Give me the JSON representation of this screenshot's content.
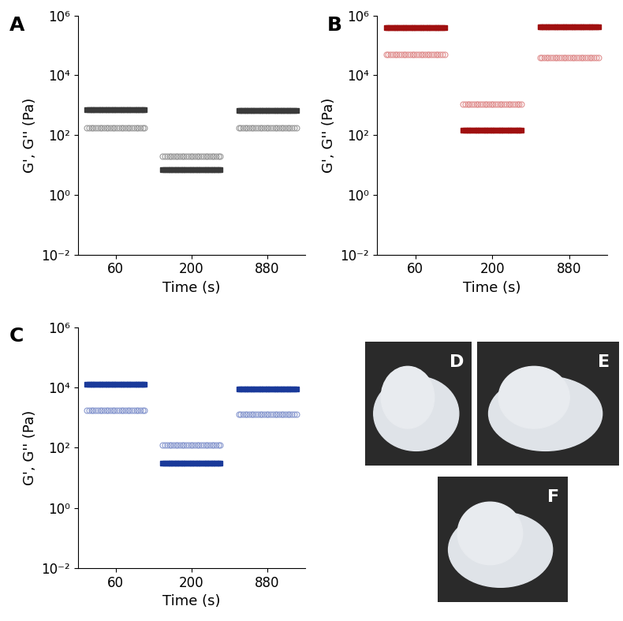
{
  "chart_data": [
    {
      "type": "scatter",
      "panel": "A",
      "x_label": "Time (s)",
      "y_label": "G', G'' (Pa)",
      "categories": [
        "60",
        "200",
        "880"
      ],
      "log": "y",
      "ylim": [
        0.01,
        1000000
      ],
      "yticks": [
        {
          "value": 0.01,
          "label": "10⁻²"
        },
        {
          "value": 1,
          "label": "10⁰"
        },
        {
          "value": 100,
          "label": "10²"
        },
        {
          "value": 10000,
          "label": "10⁴"
        },
        {
          "value": 1000000,
          "label": "10⁶"
        }
      ],
      "series": [
        {
          "name": "G'",
          "color": "#3a3a3a",
          "marker": "square",
          "values": [
            700,
            7,
            650
          ]
        },
        {
          "name": "G''",
          "color": "#9a9a9a",
          "marker": "open_circle",
          "values": [
            170,
            20,
            170
          ]
        }
      ]
    },
    {
      "type": "scatter",
      "panel": "B",
      "x_label": "Time (s)",
      "y_label": "G', G'' (Pa)",
      "categories": [
        "60",
        "200",
        "880"
      ],
      "log": "y",
      "ylim": [
        0.01,
        1000000
      ],
      "yticks": [
        {
          "value": 0.01,
          "label": "10⁻²"
        },
        {
          "value": 1,
          "label": "10⁰"
        },
        {
          "value": 100,
          "label": "10²"
        },
        {
          "value": 10000,
          "label": "10⁴"
        },
        {
          "value": 1000000,
          "label": "10⁶"
        }
      ],
      "series": [
        {
          "name": "G'",
          "color": "#a01010",
          "marker": "square",
          "values": [
            400000,
            150,
            420000
          ]
        },
        {
          "name": "G''",
          "color": "#e09090",
          "marker": "open_circle",
          "values": [
            50000,
            1100,
            40000
          ]
        }
      ]
    },
    {
      "type": "scatter",
      "panel": "C",
      "x_label": "Time (s)",
      "y_label": "G', G'' (Pa)",
      "categories": [
        "60",
        "200",
        "880"
      ],
      "log": "y",
      "ylim": [
        0.01,
        1000000
      ],
      "yticks": [
        {
          "value": 0.01,
          "label": "10⁻²"
        },
        {
          "value": 1,
          "label": "10⁰"
        },
        {
          "value": 100,
          "label": "10²"
        },
        {
          "value": 10000,
          "label": "10⁴"
        },
        {
          "value": 1000000,
          "label": "10⁶"
        }
      ],
      "series": [
        {
          "name": "G'",
          "color": "#1a3a9a",
          "marker": "square",
          "values": [
            13000,
            30,
            9000
          ]
        },
        {
          "name": "G''",
          "color": "#8a9ad0",
          "marker": "open_circle",
          "values": [
            1800,
            120,
            1300
          ]
        }
      ]
    }
  ],
  "photos": [
    {
      "label": "D"
    },
    {
      "label": "E"
    },
    {
      "label": "F"
    }
  ]
}
